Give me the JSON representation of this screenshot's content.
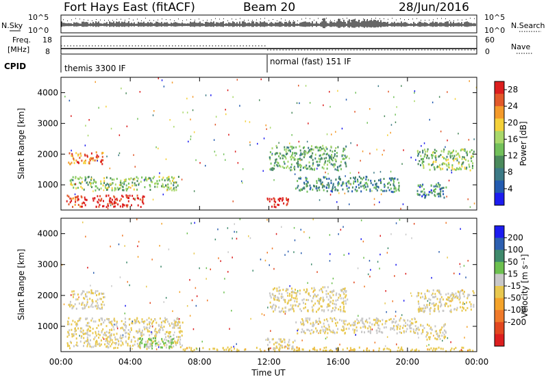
{
  "header": {
    "station": "Fort Hays East (fitACF)",
    "beam": "Beam 20",
    "date": "28/Jun/2016"
  },
  "panels": {
    "nsky_label": "N.Sky",
    "nsearch_label": "N.Search",
    "freq_label_1": "Freq.",
    "freq_label_2": "[MHz]",
    "nave_label": "Nave",
    "cpid_label": "CPID",
    "nsky_ticks": [
      "10^5",
      "10^0"
    ],
    "nsearch_ticks": [
      "10^5",
      "10^0"
    ],
    "freq_ticks": [
      "18",
      "8"
    ],
    "nave_ticks": [
      "60",
      "0"
    ],
    "cpid_left": "themis 3300 IF",
    "cpid_right": "normal (fast) 151 IF"
  },
  "colors": {
    "power_scale": [
      "#1c1cf0",
      "#235bb0",
      "#3c7a86",
      "#4b8a5c",
      "#72c05a",
      "#a9d86a",
      "#f4d13a",
      "#f49a2a",
      "#e2592a",
      "#dc1e1e"
    ],
    "velocity_scale": [
      "#1c1cf0",
      "#2c5fb0",
      "#3f8a6c",
      "#6cc04f",
      "#c8c8c8",
      "#e8c84f",
      "#f4a32a",
      "#f07a2a",
      "#e2471f",
      "#dc1e1e"
    ]
  },
  "chart_data": [
    {
      "type": "heatmap",
      "title": "Power",
      "xlabel": "",
      "ylabel": "Slant Range [km]",
      "x_ticks": [
        "00:00",
        "04:00",
        "08:00",
        "12:00",
        "16:00",
        "20:00",
        "00:00"
      ],
      "y_ticks": [
        1000,
        2000,
        3000,
        4000
      ],
      "ylim": [
        180,
        4500
      ],
      "xlim_hours": [
        0,
        24
      ],
      "colorbar": {
        "label": "Power [dB]",
        "ticks": [
          4,
          8,
          12,
          16,
          20,
          24,
          28
        ],
        "range": [
          0,
          30
        ]
      },
      "echo_regions": [
        {
          "t": [
            0.4,
            2.5
          ],
          "range_km": [
            1700,
            2100
          ],
          "value": 24
        },
        {
          "t": [
            0.3,
            1.5
          ],
          "range_km": [
            300,
            700
          ],
          "value": 28
        },
        {
          "t": [
            1.8,
            4.8
          ],
          "range_km": [
            300,
            700
          ],
          "value": 30
        },
        {
          "t": [
            0.5,
            6.8
          ],
          "range_km": [
            850,
            1300
          ],
          "value": 14
        },
        {
          "t": [
            11.8,
            13.2
          ],
          "range_km": [
            300,
            600
          ],
          "value": 30
        },
        {
          "t": [
            12.0,
            16.5
          ],
          "range_km": [
            1500,
            2300
          ],
          "value": 12
        },
        {
          "t": [
            13.5,
            19.5
          ],
          "range_km": [
            800,
            1300
          ],
          "value": 9
        },
        {
          "t": [
            20.5,
            23.8
          ],
          "range_km": [
            1500,
            2200
          ],
          "value": 14
        },
        {
          "t": [
            20.5,
            22.2
          ],
          "range_km": [
            600,
            1100
          ],
          "value": 8
        }
      ]
    },
    {
      "type": "heatmap",
      "title": "Velocity",
      "xlabel": "Time UT",
      "ylabel": "Slant Range [km]",
      "x_ticks": [
        "00:00",
        "04:00",
        "08:00",
        "12:00",
        "16:00",
        "20:00",
        "00:00"
      ],
      "y_ticks": [
        1000,
        2000,
        3000,
        4000
      ],
      "ylim": [
        180,
        4500
      ],
      "xlim_hours": [
        0,
        24
      ],
      "colorbar": {
        "label": "Velocity [m s⁻¹]",
        "ticks": [
          200,
          100,
          50,
          15,
          -15,
          -50,
          -100,
          -200
        ],
        "range": [
          -250,
          250
        ]
      },
      "echo_regions": [
        {
          "t": [
            0.4,
            2.5
          ],
          "range_km": [
            1600,
            2200
          ],
          "value": 0
        },
        {
          "t": [
            0.3,
            7.0
          ],
          "range_km": [
            300,
            1300
          ],
          "value": 0
        },
        {
          "t": [
            4.5,
            6.5
          ],
          "range_km": [
            300,
            650
          ],
          "value": 60
        },
        {
          "t": [
            7.0,
            24.0
          ],
          "range_km": [
            180,
            350
          ],
          "value": -35
        },
        {
          "t": [
            11.8,
            13.5
          ],
          "range_km": [
            300,
            650
          ],
          "value": 0
        },
        {
          "t": [
            12.0,
            16.5
          ],
          "range_km": [
            1500,
            2300
          ],
          "value": 0
        },
        {
          "t": [
            13.5,
            20.5
          ],
          "range_km": [
            800,
            1300
          ],
          "value": 0
        },
        {
          "t": [
            20.5,
            23.8
          ],
          "range_km": [
            1500,
            2200
          ],
          "value": 0
        },
        {
          "t": [
            20.5,
            22.2
          ],
          "range_km": [
            600,
            1100
          ],
          "value": 0
        }
      ]
    }
  ]
}
